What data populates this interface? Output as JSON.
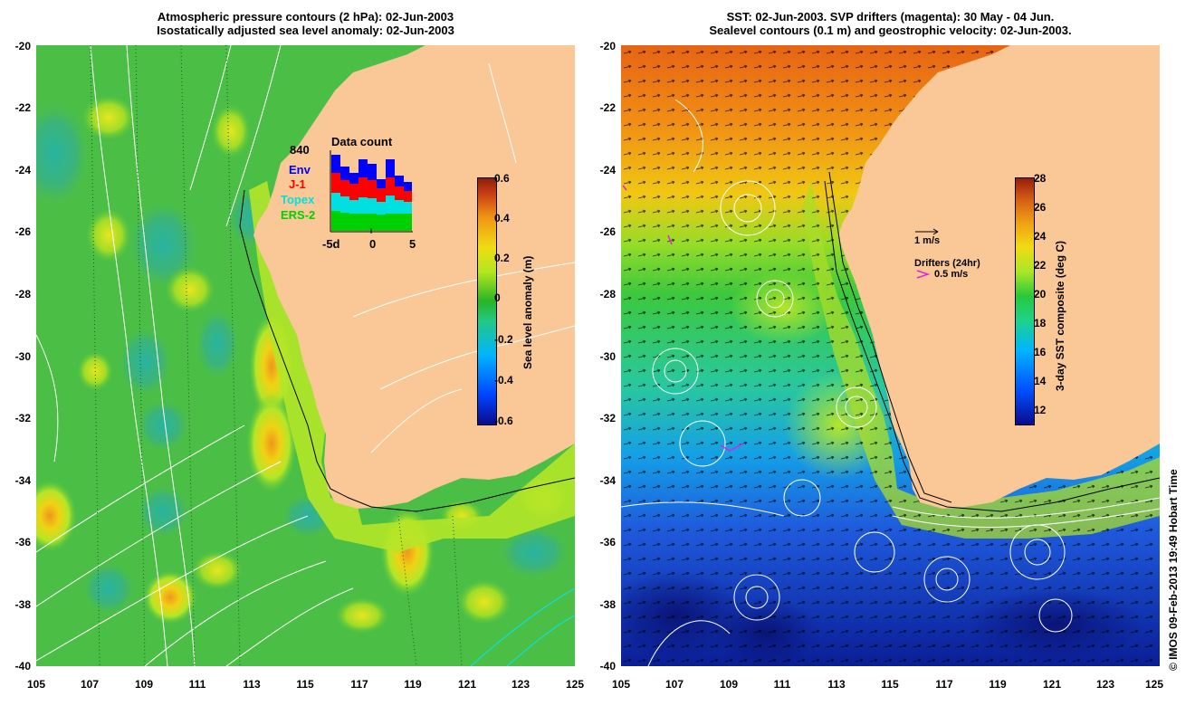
{
  "left": {
    "title_line1": "Atmospheric pressure contours (2 hPa): 02-Jun-2003",
    "title_line2": "Isostatically adjusted sea level anomaly: 02-Jun-2003",
    "y_ticks": [
      "-20",
      "-22",
      "-24",
      "-26",
      "-28",
      "-30",
      "-32",
      "-34",
      "-36",
      "-38",
      "-40"
    ],
    "x_ticks": [
      "105",
      "107",
      "109",
      "111",
      "113",
      "115",
      "117",
      "119",
      "121",
      "123",
      "125"
    ],
    "colorbar": {
      "title": "Sea level anomaly (m)",
      "ticks": [
        "0.6",
        "0.4",
        "0.2",
        "0",
        "-0.2",
        "-0.4",
        "-0.6"
      ],
      "range": [
        -0.6,
        0.6
      ]
    },
    "data_count": {
      "title": "Data count",
      "max_label": "840",
      "axis_labels": [
        "-5d",
        "0",
        "5"
      ],
      "legend": [
        {
          "label": "Env",
          "color": "#0000ff"
        },
        {
          "label": "J-1",
          "color": "#ff0000"
        },
        {
          "label": "Topex",
          "color": "#00e0e0"
        },
        {
          "label": "ERS-2",
          "color": "#00d000"
        }
      ]
    }
  },
  "right": {
    "title_line1": "SST: 02-Jun-2003. SVP drifters (magenta): 30 May - 04 Jun.",
    "title_line2": "Sealevel contours (0.1 m) and geostrophic velocity: 02-Jun-2003.",
    "y_ticks": [
      "-20",
      "-22",
      "-24",
      "-26",
      "-28",
      "-30",
      "-32",
      "-34",
      "-36",
      "-38",
      "-40"
    ],
    "x_ticks": [
      "105",
      "107",
      "109",
      "111",
      "113",
      "115",
      "117",
      "119",
      "121",
      "123",
      "125"
    ],
    "colorbar": {
      "title": "3-day SST composite (deg C)",
      "ticks": [
        "28",
        "26",
        "24",
        "22",
        "20",
        "18",
        "16",
        "14",
        "12"
      ],
      "range": [
        11,
        28
      ]
    },
    "velocity_scale_label": "1 m/s",
    "drifters_label": "Drifters (24hr)",
    "drifter_scale_label": "0.5 m/s"
  },
  "credit": "© IMOS 09-Feb-2013 19:49 Hobart Time",
  "colors": {
    "land": "#f9c896",
    "drifter": "#e020e0"
  }
}
